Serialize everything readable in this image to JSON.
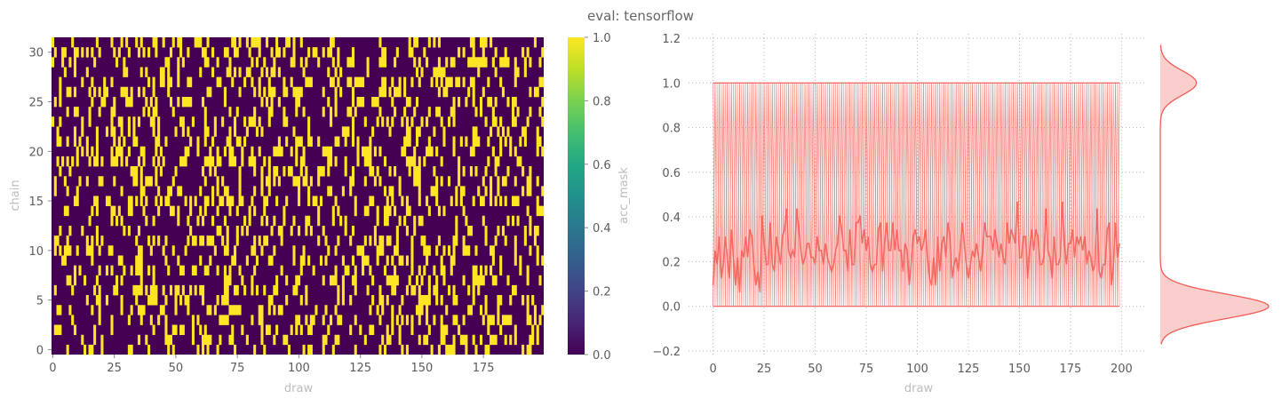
{
  "figure": {
    "title": "eval: tensorflow"
  },
  "chart_data": [
    {
      "type": "heatmap",
      "xlabel": "draw",
      "ylabel": "chain",
      "x_range": [
        0,
        199
      ],
      "y_range": [
        0,
        31
      ],
      "xticks": [
        0,
        25,
        50,
        75,
        100,
        125,
        150,
        175
      ],
      "yticks": [
        0,
        5,
        10,
        15,
        20,
        25,
        30
      ],
      "n_draws": 200,
      "n_chains": 32,
      "acceptance_rate": 0.25,
      "colormap": "viridis",
      "colorbar": {
        "label": "acc_mask",
        "range": [
          0.0,
          1.0
        ],
        "ticks": [
          "0.0",
          "0.2",
          "0.4",
          "0.6",
          "0.8",
          "1.0"
        ]
      },
      "colors": {
        "low": "#440154",
        "high": "#fde725"
      }
    },
    {
      "type": "line",
      "xlabel": "draw",
      "ylabel": "",
      "xlim": [
        -12,
        212
      ],
      "ylim": [
        -0.22,
        1.22
      ],
      "xticks": [
        "0",
        "25",
        "50",
        "75",
        "100",
        "125",
        "150",
        "175",
        "200"
      ],
      "yticks": [
        "−0.2",
        "0.0",
        "0.2",
        "0.4",
        "0.6",
        "0.8",
        "1.0",
        "1.2"
      ],
      "grid": true,
      "series": [
        {
          "description": "per-chain acc_mask traces, values 0 or 1",
          "color": "#f25c54"
        },
        {
          "description": "mean over chains, approx. 0.25",
          "mean": 0.25,
          "color": "#f25c54"
        }
      ],
      "marginal_density": {
        "type": "kde",
        "peaks": [
          0.0,
          1.0
        ],
        "weights": [
          0.75,
          0.25
        ],
        "color": "#f25c54",
        "fill": "#f9c9c7"
      }
    }
  ]
}
